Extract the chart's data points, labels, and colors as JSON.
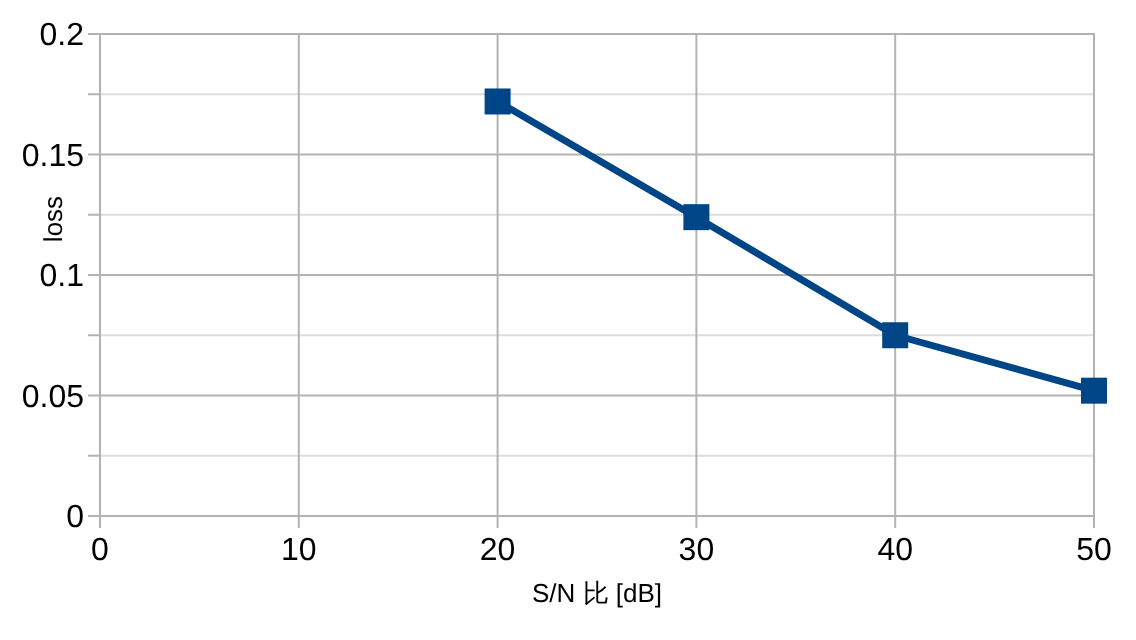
{
  "chart_data": {
    "type": "line",
    "xlabel": "S/N 比 [dB]",
    "ylabel": "loss",
    "x": [
      20,
      30,
      40,
      50
    ],
    "series": [
      {
        "color": "#004586",
        "values": [
          0.172,
          0.124,
          0.075,
          0.052
        ]
      }
    ],
    "xlim": [
      0,
      50
    ],
    "xticks": [
      0,
      10,
      20,
      30,
      40,
      50
    ],
    "ylim": [
      0,
      0.2
    ],
    "yticks": [
      0,
      {
        "value": 0.025,
        "label": null
      },
      0.05,
      {
        "value": 0.075,
        "label": null
      },
      0.1,
      {
        "value": 0.125,
        "label": null
      },
      0.15,
      {
        "value": 0.175,
        "label": null
      },
      0.2
    ],
    "grid": true,
    "marker": "square",
    "line_style": "solid"
  }
}
